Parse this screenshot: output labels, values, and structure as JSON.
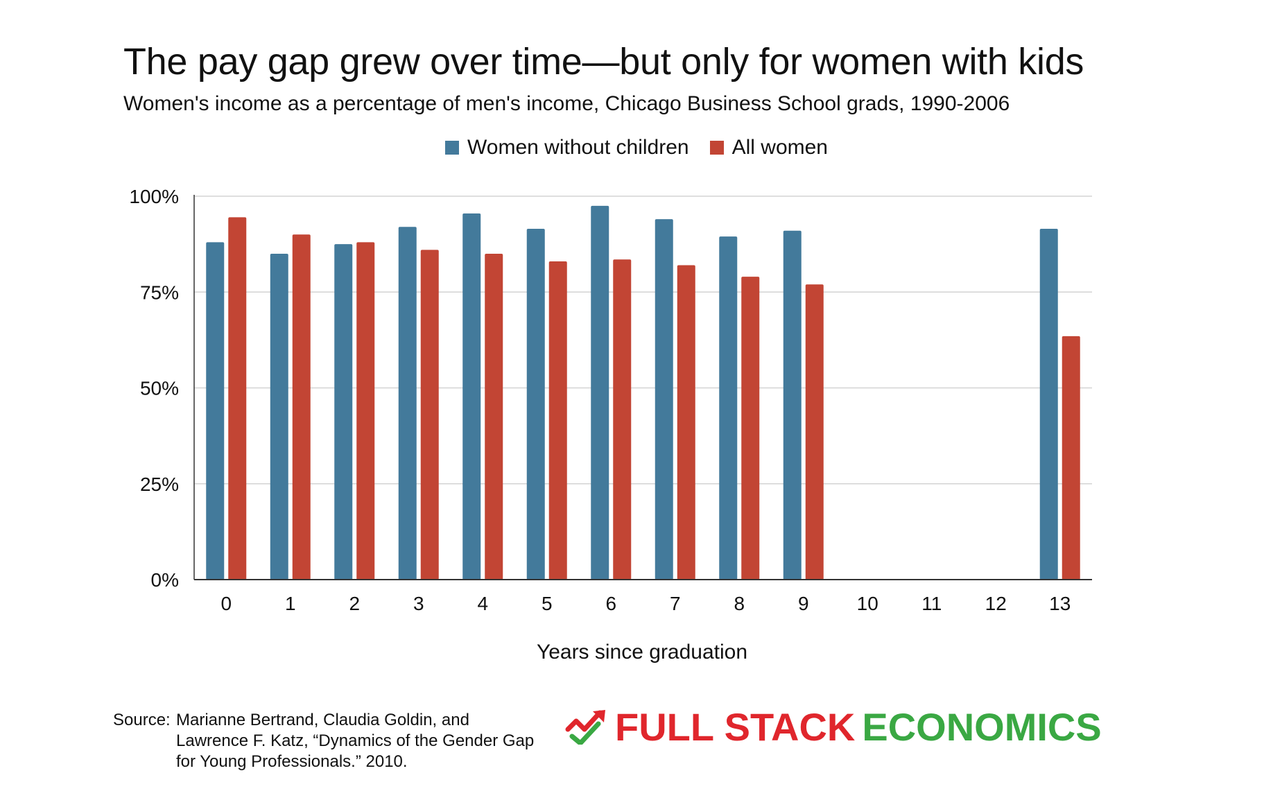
{
  "title": "The pay gap grew over time—but only for women with kids",
  "subtitle": "Women's income as a percentage of men's income, Chicago Business School grads, 1990-2006",
  "colors": {
    "series_1": "#437a9b",
    "series_2": "#c24534",
    "grid": "#d3d3d3",
    "axis": "#333333",
    "logo_red": "#e0262c",
    "logo_green": "#3aa843"
  },
  "chart_data": {
    "type": "bar",
    "title": "The pay gap grew over time—but only for women with kids",
    "xlabel": "Years since graduation",
    "ylabel": "",
    "ylim": [
      0,
      100
    ],
    "yticks": [
      "0%",
      "25%",
      "50%",
      "75%",
      "100%"
    ],
    "ytick_values": [
      0,
      25,
      50,
      75,
      100
    ],
    "grid": true,
    "legend_position": "top-center",
    "categories": [
      "0",
      "1",
      "2",
      "3",
      "4",
      "5",
      "6",
      "7",
      "8",
      "9",
      "10",
      "11",
      "12",
      "13"
    ],
    "series": [
      {
        "name": "Women without children",
        "values": [
          88,
          85,
          87.5,
          92,
          95.5,
          91.5,
          97.5,
          94,
          89.5,
          91,
          null,
          null,
          null,
          91.5
        ]
      },
      {
        "name": "All women",
        "values": [
          94.5,
          90,
          88,
          86,
          85,
          83,
          83.5,
          82,
          79,
          77,
          null,
          null,
          null,
          63.5
        ]
      }
    ]
  },
  "source": {
    "label": "Source:",
    "text": "Marianne Bertrand, Claudia Goldin, and Lawrence F. Katz, “Dynamics of the Gender Gap for Young Professionals.” 2010."
  },
  "logo": {
    "part1": "FULL STACK",
    "part2": "ECONOMICS",
    "icon": "trend-arrow-check-icon"
  }
}
